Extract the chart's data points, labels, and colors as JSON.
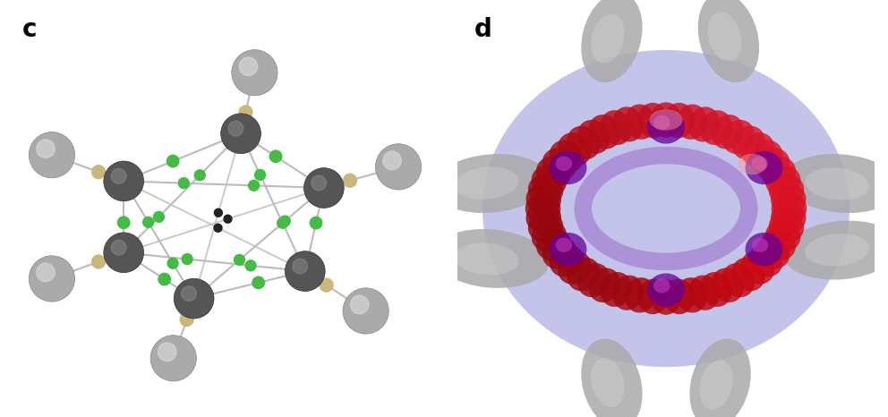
{
  "bg_color": "#ffffff",
  "label_c": "c",
  "label_d": "d",
  "label_fontsize": 20,
  "label_fontweight": "bold",
  "fig_width": 9.92,
  "fig_height": 4.66,
  "left_panel": {
    "dark_atom_color": "#555555",
    "dark_atom_edge": "#333333",
    "outer_atom_color": "#aaaaaa",
    "outer_atom_edge": "#888888",
    "tan_color": "#c8b87a",
    "green_color": "#44bb44",
    "dark_small_color": "#222222",
    "bond_color": "#bbbbbb",
    "bond_lw": 1.5
  },
  "right_panel": {
    "blue_color": "#6666cc",
    "blue_alpha": 0.38,
    "red_color": "#aa1122",
    "pink_color": "#dd6677",
    "purple_color": "#660099",
    "gray_lobe_color": "#aaaaaa",
    "gray_lobe_dark": "#888888"
  }
}
